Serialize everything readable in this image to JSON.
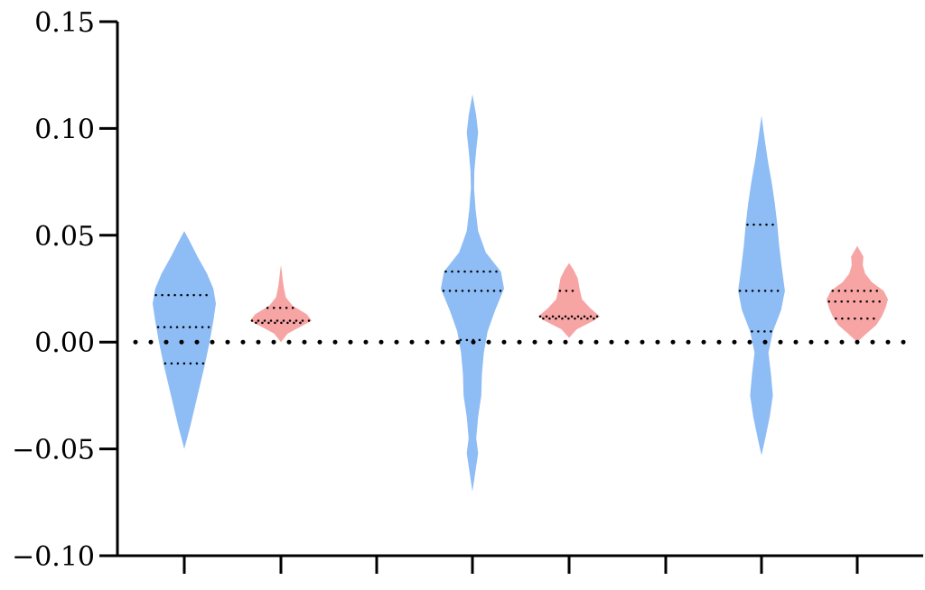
{
  "chart_data": {
    "type": "violin",
    "title": "",
    "xlabel": "",
    "ylabel": "",
    "ylim": [
      -0.1,
      0.15
    ],
    "yticks": [
      -0.1,
      -0.05,
      0.0,
      0.05,
      0.1,
      0.15
    ],
    "ytick_labels": [
      "−0.10",
      "−0.05",
      "0.00",
      "0.05",
      "0.10",
      "0.15"
    ],
    "reference_line": {
      "y": 0.0,
      "style": "dotted"
    },
    "grid": false,
    "legend": "none",
    "categories": [
      "",
      "",
      "",
      "",
      "",
      ""
    ],
    "colors": {
      "blue": "#8ebcf5",
      "red": "#f7a4a4"
    },
    "groups": [
      {
        "color": "blue",
        "min": -0.05,
        "max": 0.052,
        "quartiles": [
          -0.01,
          0.007,
          0.022
        ],
        "density": [
          [
            -0.05,
            0.0
          ],
          [
            -0.04,
            0.18
          ],
          [
            -0.03,
            0.34
          ],
          [
            -0.02,
            0.5
          ],
          [
            -0.01,
            0.66
          ],
          [
            0.0,
            0.8
          ],
          [
            0.01,
            0.92
          ],
          [
            0.018,
            1.0
          ],
          [
            0.025,
            0.92
          ],
          [
            0.032,
            0.72
          ],
          [
            0.04,
            0.42
          ],
          [
            0.047,
            0.18
          ],
          [
            0.052,
            0.0
          ]
        ]
      },
      {
        "color": "red",
        "min": 0.0,
        "max": 0.036,
        "quartiles": [
          0.009,
          0.01,
          0.016
        ],
        "density": [
          [
            0.0,
            0.0
          ],
          [
            0.004,
            0.22
          ],
          [
            0.008,
            0.74
          ],
          [
            0.01,
            1.0
          ],
          [
            0.013,
            0.84
          ],
          [
            0.017,
            0.38
          ],
          [
            0.021,
            0.16
          ],
          [
            0.025,
            0.1
          ],
          [
            0.029,
            0.06
          ],
          [
            0.033,
            0.03
          ],
          [
            0.036,
            0.0
          ]
        ]
      },
      {
        "color": "blue",
        "min": -0.07,
        "max": 0.116,
        "quartiles": [
          0.001,
          0.024,
          0.033
        ],
        "density": [
          [
            -0.07,
            0.0
          ],
          [
            -0.062,
            0.08
          ],
          [
            -0.052,
            0.18
          ],
          [
            -0.045,
            0.12
          ],
          [
            -0.035,
            0.18
          ],
          [
            -0.025,
            0.28
          ],
          [
            -0.015,
            0.3
          ],
          [
            -0.005,
            0.36
          ],
          [
            0.005,
            0.48
          ],
          [
            0.015,
            0.72
          ],
          [
            0.025,
            1.0
          ],
          [
            0.033,
            0.9
          ],
          [
            0.042,
            0.42
          ],
          [
            0.052,
            0.18
          ],
          [
            0.062,
            0.1
          ],
          [
            0.072,
            0.05
          ],
          [
            0.08,
            0.06
          ],
          [
            0.09,
            0.12
          ],
          [
            0.098,
            0.18
          ],
          [
            0.106,
            0.12
          ],
          [
            0.116,
            0.0
          ]
        ]
      },
      {
        "color": "red",
        "min": 0.002,
        "max": 0.037,
        "quartiles": [
          0.011,
          0.012,
          0.024
        ],
        "density": [
          [
            0.002,
            0.0
          ],
          [
            0.006,
            0.25
          ],
          [
            0.01,
            0.8
          ],
          [
            0.012,
            1.0
          ],
          [
            0.016,
            0.68
          ],
          [
            0.02,
            0.42
          ],
          [
            0.025,
            0.34
          ],
          [
            0.03,
            0.28
          ],
          [
            0.034,
            0.14
          ],
          [
            0.037,
            0.0
          ]
        ]
      },
      {
        "color": "blue",
        "min": -0.053,
        "max": 0.106,
        "quartiles": [
          0.005,
          0.024,
          0.055
        ],
        "density": [
          [
            -0.053,
            0.0
          ],
          [
            -0.045,
            0.12
          ],
          [
            -0.035,
            0.26
          ],
          [
            -0.025,
            0.36
          ],
          [
            -0.015,
            0.3
          ],
          [
            -0.005,
            0.22
          ],
          [
            0.005,
            0.36
          ],
          [
            0.015,
            0.62
          ],
          [
            0.024,
            0.74
          ],
          [
            0.035,
            0.64
          ],
          [
            0.045,
            0.56
          ],
          [
            0.055,
            0.5
          ],
          [
            0.065,
            0.42
          ],
          [
            0.075,
            0.32
          ],
          [
            0.085,
            0.2
          ],
          [
            0.095,
            0.1
          ],
          [
            0.106,
            0.0
          ]
        ]
      },
      {
        "color": "red",
        "min": 0.0,
        "max": 0.045,
        "quartiles": [
          0.011,
          0.019,
          0.024
        ],
        "density": [
          [
            0.0,
            0.0
          ],
          [
            0.004,
            0.3
          ],
          [
            0.008,
            0.62
          ],
          [
            0.012,
            0.8
          ],
          [
            0.016,
            0.92
          ],
          [
            0.02,
            1.0
          ],
          [
            0.024,
            0.86
          ],
          [
            0.028,
            0.48
          ],
          [
            0.032,
            0.26
          ],
          [
            0.036,
            0.18
          ],
          [
            0.04,
            0.2
          ],
          [
            0.045,
            0.0
          ]
        ]
      }
    ]
  }
}
